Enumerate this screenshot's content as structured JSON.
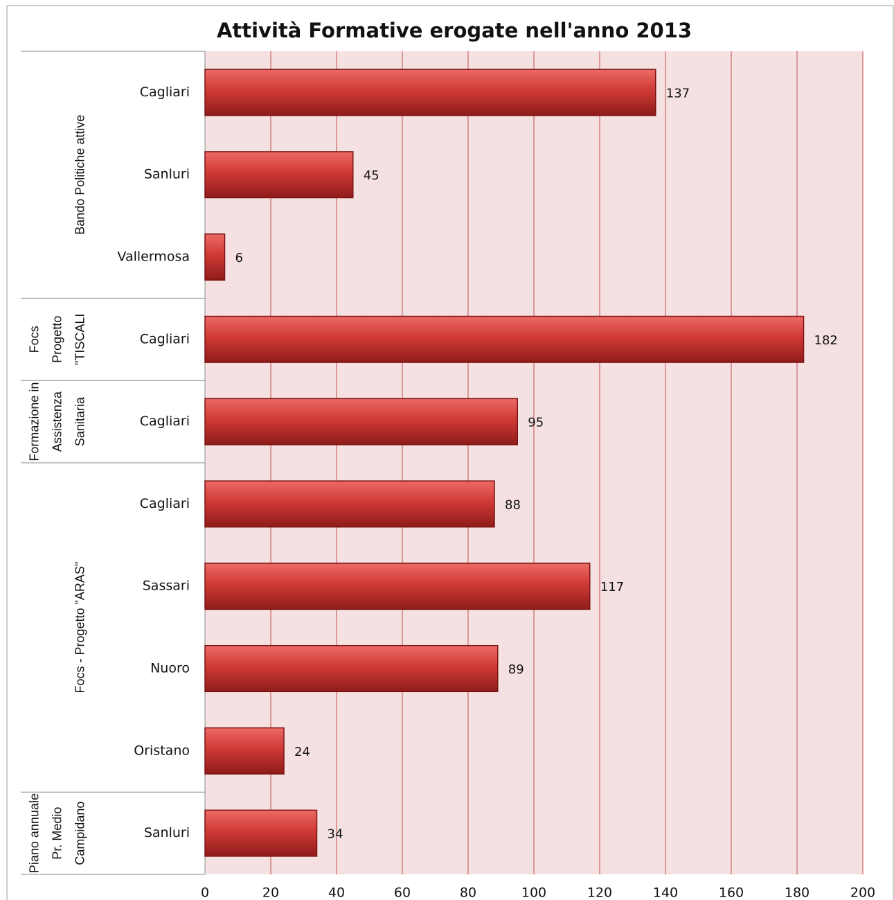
{
  "chart_data": {
    "type": "bar",
    "orientation": "horizontal",
    "title": "Attività Formative erogate nell'anno 2013",
    "categories": [
      "Cagliari",
      "Sanluri",
      "Vallermosa",
      "Cagliari",
      "Cagliari",
      "Cagliari",
      "Sassari",
      "Nuoro",
      "Oristano",
      "Sanluri"
    ],
    "values": [
      137,
      45,
      6,
      182,
      95,
      88,
      117,
      89,
      24,
      34
    ],
    "groups": [
      {
        "label": [
          "Bando Politiche attive"
        ],
        "size": 3
      },
      {
        "label": [
          "Focs",
          "Progetto",
          "\"TISCALI"
        ],
        "size": 1
      },
      {
        "label": [
          "Formazione in",
          "Assistenza",
          "Sanitaria"
        ],
        "size": 1
      },
      {
        "label": [
          "Focs - Progetto \"ARAS\""
        ],
        "size": 4
      },
      {
        "label": [
          "Piano annuale",
          "Pr. Medio",
          "Campidano"
        ],
        "size": 1
      }
    ],
    "color": "#c0504d",
    "xlim": [
      0,
      200
    ],
    "xticks": [
      0,
      20,
      40,
      60,
      80,
      100,
      120,
      140,
      160,
      180,
      200
    ],
    "grid": true
  }
}
